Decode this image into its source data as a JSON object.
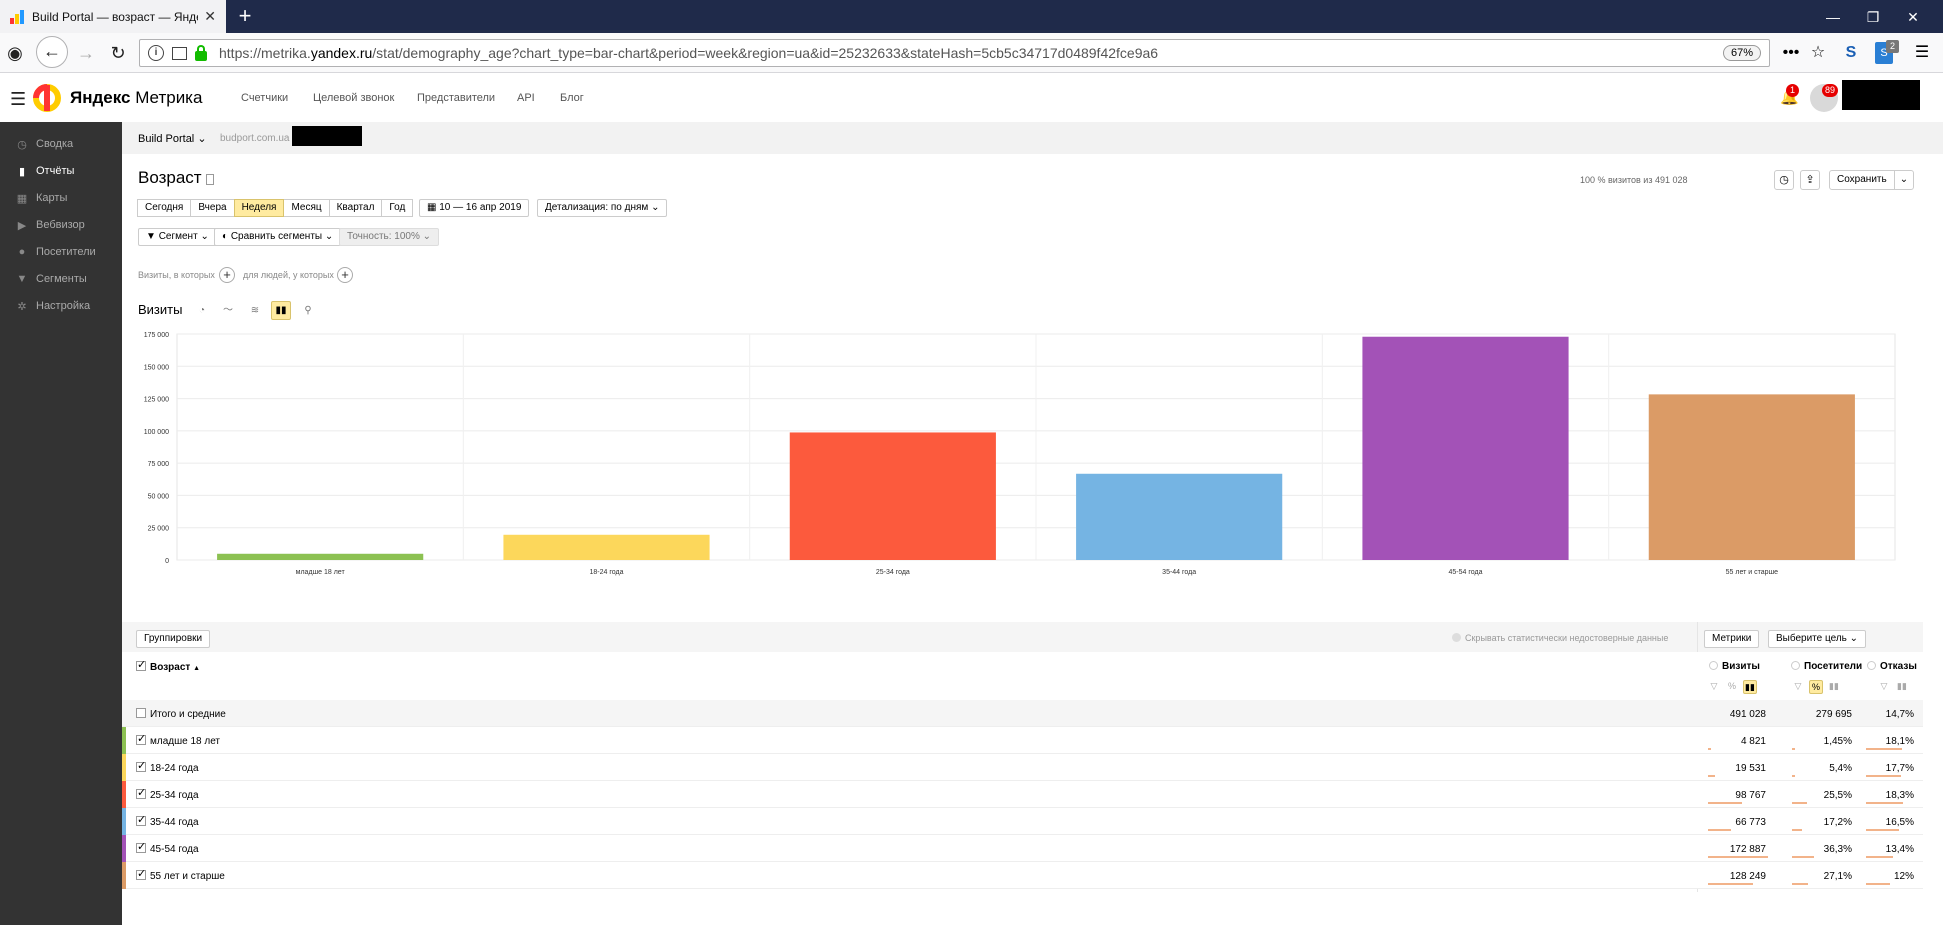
{
  "browser": {
    "tab_title": "Build Portal — возраст — Янде",
    "tab_close": "✕",
    "new_tab": "+",
    "url_prefix": "https://metrika.",
    "url_domain": "yandex.ru",
    "url_rest": "/stat/demography_age?chart_type=bar-chart&period=week&region=ua&id=25232633&stateHash=5cb5c34717d0489f42fce9a6",
    "zoom": "67%",
    "ext_badge": "2"
  },
  "header": {
    "brand_bold": "Яндекс",
    "brand_rest": " Метрика",
    "nav": [
      "Счетчики",
      "Целевой звонок",
      "Представители",
      "API",
      "Блог"
    ],
    "bell_badge": "1",
    "avatar_badge": "89"
  },
  "sidebar": {
    "items": [
      {
        "label": "Сводка",
        "icon": "gauge-icon",
        "active": false
      },
      {
        "label": "Отчёты",
        "icon": "bar-chart-icon",
        "active": true
      },
      {
        "label": "Карты",
        "icon": "map-icon",
        "active": false
      },
      {
        "label": "Вебвизор",
        "icon": "play-icon",
        "active": false
      },
      {
        "label": "Посетители",
        "icon": "user-icon",
        "active": false
      },
      {
        "label": "Сегменты",
        "icon": "filter-icon",
        "active": false
      },
      {
        "label": "Настройка",
        "icon": "gear-icon",
        "active": false
      }
    ]
  },
  "crumbs": {
    "counter": "Build Portal",
    "site": "budport.com.ua"
  },
  "report": {
    "title": "Возраст",
    "summary": "100 % визитов из 491 028",
    "save_label": "Сохранить",
    "periods": [
      "Сегодня",
      "Вчера",
      "Неделя",
      "Месяц",
      "Квартал",
      "Год"
    ],
    "selected_period": "Неделя",
    "date_range": "10 — 16 апр 2019",
    "detail": "Детализация: по дням",
    "segment": "Сегмент",
    "compare": "Сравнить сегменты",
    "accuracy": "Точность: 100%",
    "cond_visits": "Визиты, в которых",
    "cond_people": "для людей, у которых",
    "chart_label": "Визиты"
  },
  "chart_data": {
    "type": "bar",
    "categories": [
      "младше 18 лет",
      "18-24 года",
      "25-34 года",
      "35-44 года",
      "45-54 года",
      "55 лет и старше"
    ],
    "values": [
      4821,
      19531,
      98767,
      66773,
      172887,
      128249
    ],
    "colors": [
      "#8cc152",
      "#fcd75b",
      "#fc5a3d",
      "#75b4e3",
      "#a352b7",
      "#db9b66"
    ],
    "ylim": [
      0,
      175000
    ],
    "yticks": [
      "0",
      "25 000",
      "50 000",
      "75 000",
      "100 000",
      "125 000",
      "150 000",
      "175 000"
    ],
    "grid": true,
    "title": "",
    "xlabel": "",
    "ylabel": ""
  },
  "table": {
    "groupings_label": "Группировки",
    "hide_label": "Скрывать статистически недостоверные данные",
    "metrics_label": "Метрики",
    "goal_label": "Выберите цель",
    "dim_header": "Возраст",
    "sort_arrow": "▲",
    "metric_headers": [
      "Визиты",
      "Посетители",
      "Отказы"
    ],
    "total": {
      "label": "Итого и средние",
      "visits": "491 028",
      "visitors": "279 695",
      "bounce": "14,7%"
    },
    "rows": [
      {
        "label": "младше 18 лет",
        "visits": "4 821",
        "visitors": "1,45%",
        "bounce": "18,1%",
        "color": "#8cc152",
        "v": 0.028,
        "p": 0.014,
        "b": 0.181
      },
      {
        "label": "18-24 года",
        "visits": "19 531",
        "visitors": "5,4%",
        "bounce": "17,7%",
        "color": "#fcd75b",
        "v": 0.113,
        "p": 0.054,
        "b": 0.177
      },
      {
        "label": "25-34 года",
        "visits": "98 767",
        "visitors": "25,5%",
        "bounce": "18,3%",
        "color": "#fc5a3d",
        "v": 0.571,
        "p": 0.255,
        "b": 0.183
      },
      {
        "label": "35-44 года",
        "visits": "66 773",
        "visitors": "17,2%",
        "bounce": "16,5%",
        "color": "#75b4e3",
        "v": 0.386,
        "p": 0.172,
        "b": 0.165
      },
      {
        "label": "45-54 года",
        "visits": "172 887",
        "visitors": "36,3%",
        "bounce": "13,4%",
        "color": "#a352b7",
        "v": 1.0,
        "p": 0.363,
        "b": 0.134
      },
      {
        "label": "55 лет и старше",
        "visits": "128 249",
        "visitors": "27,1%",
        "bounce": "12%",
        "color": "#db9b66",
        "v": 0.742,
        "p": 0.271,
        "b": 0.12
      }
    ]
  }
}
